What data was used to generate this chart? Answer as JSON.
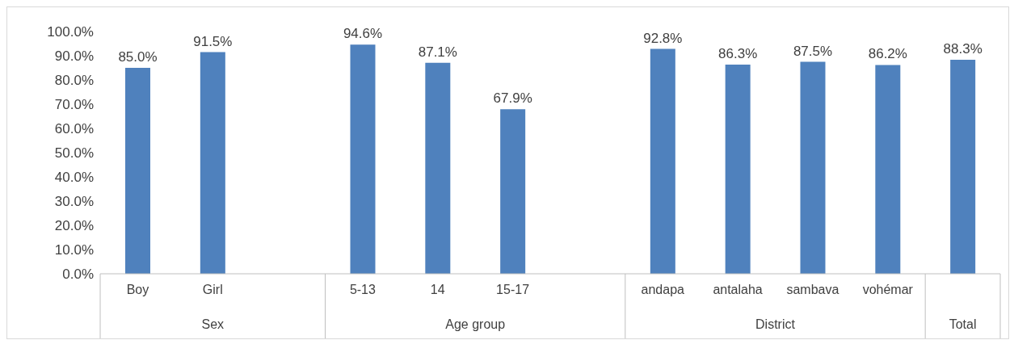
{
  "chart_data": {
    "type": "bar",
    "categories": [
      "Boy",
      "Girl",
      null,
      "5-13",
      "14",
      "15-17",
      null,
      "andapa",
      "antalaha",
      "sambava",
      "vohémar",
      null
    ],
    "values": [
      85.0,
      91.5,
      null,
      94.6,
      87.1,
      67.9,
      null,
      92.8,
      86.3,
      87.5,
      86.2,
      88.3
    ],
    "value_labels": [
      "85.0%",
      "91.5%",
      null,
      "94.6%",
      "87.1%",
      "67.9%",
      null,
      "92.8%",
      "86.3%",
      "87.5%",
      "86.2%",
      "88.3%"
    ],
    "color": "#4f81bd",
    "ylim": [
      0,
      100
    ],
    "yticks": [
      {
        "value": 0,
        "label": "0.0%"
      },
      {
        "value": 10,
        "label": "10.0%"
      },
      {
        "value": 20,
        "label": "20.0%"
      },
      {
        "value": 30,
        "label": "30.0%"
      },
      {
        "value": 40,
        "label": "40.0%"
      },
      {
        "value": 50,
        "label": "50.0%"
      },
      {
        "value": 60,
        "label": "60.0%"
      },
      {
        "value": 70,
        "label": "70.0%"
      },
      {
        "value": 80,
        "label": "80.0%"
      },
      {
        "value": 90,
        "label": "90.0%"
      },
      {
        "value": 100,
        "label": "100.0%"
      }
    ],
    "annotations": [
      "Sex",
      "Age group",
      "District",
      "Total"
    ]
  }
}
